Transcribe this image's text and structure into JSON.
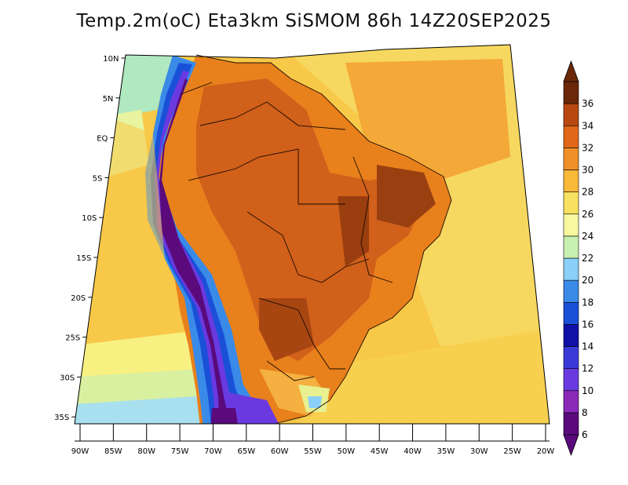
{
  "title": "Temp.2m(oC) Eta3km SiSMOM 86h 14Z20SEP2025",
  "axes": {
    "lat_labels": [
      "10N",
      "5N",
      "EQ",
      "5S",
      "10S",
      "15S",
      "20S",
      "25S",
      "30S",
      "35S"
    ],
    "lat_values": [
      10,
      5,
      0,
      -5,
      -10,
      -15,
      -20,
      -25,
      -30,
      -35
    ],
    "lon_labels": [
      "90W",
      "85W",
      "80W",
      "75W",
      "70W",
      "65W",
      "60W",
      "55W",
      "50W",
      "45W",
      "40W",
      "35W",
      "30W",
      "25W",
      "20W"
    ],
    "lon_values": [
      -90,
      -85,
      -80,
      -75,
      -70,
      -65,
      -60,
      -55,
      -50,
      -45,
      -40,
      -35,
      -30,
      -25,
      -20
    ]
  },
  "colorbar": {
    "labels": [
      "6",
      "8",
      "10",
      "12",
      "14",
      "16",
      "18",
      "20",
      "22",
      "24",
      "26",
      "28",
      "30",
      "32",
      "34",
      "36"
    ],
    "values": [
      6,
      8,
      10,
      12,
      14,
      16,
      18,
      20,
      22,
      24,
      26,
      28,
      30,
      32,
      34,
      36
    ],
    "colors": [
      "#5a0a7a",
      "#8a2ab8",
      "#6a3ae0",
      "#3a3ad8",
      "#1010a8",
      "#1a50d8",
      "#3a8ae8",
      "#8ad0f8",
      "#c8f0b0",
      "#f8f8a0",
      "#f8e060",
      "#f8b838",
      "#f09028",
      "#e06818",
      "#b84810",
      "#6a2808"
    ]
  }
}
